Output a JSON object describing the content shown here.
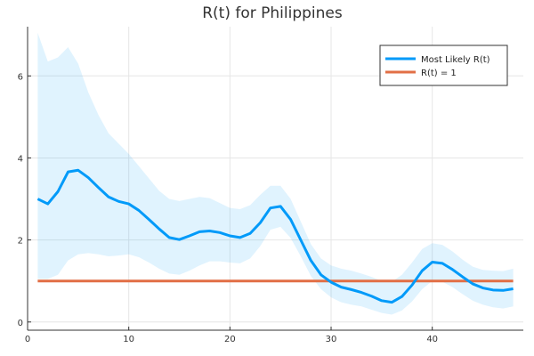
{
  "chart_data": {
    "type": "line",
    "title": "R(t) for Philippines",
    "xlabel": "",
    "ylabel": "",
    "xlim": [
      0,
      49
    ],
    "ylim": [
      -0.2,
      7.2
    ],
    "xticks": [
      0,
      10,
      20,
      30,
      40
    ],
    "yticks": [
      0,
      2,
      4,
      6
    ],
    "grid": true,
    "legend_position": "top-right",
    "x": [
      1,
      2,
      3,
      4,
      5,
      6,
      7,
      8,
      9,
      10,
      11,
      12,
      13,
      14,
      15,
      16,
      17,
      18,
      19,
      20,
      21,
      22,
      23,
      24,
      25,
      26,
      27,
      28,
      29,
      30,
      31,
      32,
      33,
      34,
      35,
      36,
      37,
      38,
      39,
      40,
      41,
      42,
      43,
      44,
      45,
      46,
      47,
      48
    ],
    "series": [
      {
        "name": "Most Likely R(t)",
        "color": "#009AF9",
        "values": [
          3.0,
          2.88,
          3.18,
          3.66,
          3.7,
          3.52,
          3.28,
          3.05,
          2.94,
          2.88,
          2.72,
          2.5,
          2.27,
          2.06,
          2.01,
          2.1,
          2.2,
          2.22,
          2.18,
          2.1,
          2.06,
          2.16,
          2.42,
          2.78,
          2.82,
          2.5,
          2.0,
          1.5,
          1.15,
          0.97,
          0.85,
          0.79,
          0.72,
          0.63,
          0.52,
          0.48,
          0.62,
          0.9,
          1.25,
          1.46,
          1.43,
          1.28,
          1.1,
          0.93,
          0.83,
          0.78,
          0.77,
          0.81
        ]
      },
      {
        "name": "R(t) = 1",
        "color": "#E26F46",
        "values": [
          1,
          1,
          1,
          1,
          1,
          1,
          1,
          1,
          1,
          1,
          1,
          1,
          1,
          1,
          1,
          1,
          1,
          1,
          1,
          1,
          1,
          1,
          1,
          1,
          1,
          1,
          1,
          1,
          1,
          1,
          1,
          1,
          1,
          1,
          1,
          1,
          1,
          1,
          1,
          1,
          1,
          1,
          1,
          1,
          1,
          1,
          1,
          1
        ]
      }
    ],
    "band": {
      "color": "#009AF9",
      "opacity": 0.12,
      "upper": [
        7.05,
        6.35,
        6.45,
        6.7,
        6.3,
        5.6,
        5.05,
        4.6,
        4.35,
        4.1,
        3.8,
        3.5,
        3.2,
        3.0,
        2.95,
        3.0,
        3.05,
        3.02,
        2.9,
        2.78,
        2.75,
        2.85,
        3.1,
        3.32,
        3.32,
        3.0,
        2.45,
        1.9,
        1.55,
        1.38,
        1.3,
        1.25,
        1.18,
        1.1,
        1.0,
        0.98,
        1.15,
        1.45,
        1.78,
        1.92,
        1.88,
        1.72,
        1.52,
        1.35,
        1.27,
        1.25,
        1.24,
        1.3
      ],
      "lower": [
        1.05,
        1.05,
        1.15,
        1.5,
        1.65,
        1.68,
        1.65,
        1.6,
        1.62,
        1.65,
        1.58,
        1.45,
        1.3,
        1.18,
        1.15,
        1.25,
        1.38,
        1.48,
        1.48,
        1.45,
        1.43,
        1.55,
        1.85,
        2.25,
        2.32,
        2.05,
        1.6,
        1.12,
        0.8,
        0.6,
        0.48,
        0.42,
        0.38,
        0.3,
        0.22,
        0.18,
        0.28,
        0.5,
        0.8,
        1.0,
        0.98,
        0.85,
        0.68,
        0.52,
        0.42,
        0.36,
        0.33,
        0.38
      ]
    }
  }
}
